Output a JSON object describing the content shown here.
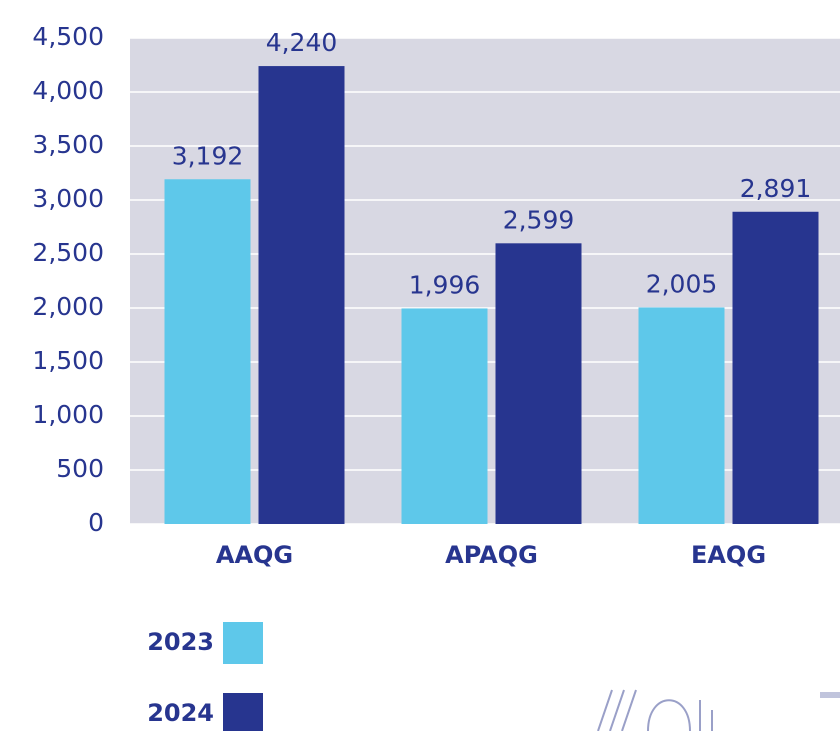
{
  "chart_data": {
    "type": "bar",
    "categories": [
      "AAQG",
      "APAQG",
      "EAQG"
    ],
    "series": [
      {
        "name": "2023",
        "color": "#5ec8ea",
        "values": [
          3192,
          1996,
          2005
        ],
        "value_labels": [
          "3,192",
          "1,996",
          "2,005"
        ]
      },
      {
        "name": "2024",
        "color": "#27358f",
        "values": [
          4240,
          2599,
          2891
        ],
        "value_labels": [
          "4,240",
          "2,599",
          "2,891"
        ]
      }
    ],
    "ylim": [
      0,
      4500
    ],
    "yticks": [
      0,
      500,
      {
        "value": 1000,
        "label": "1,000"
      },
      {
        "value": 1500,
        "label": "1,500"
      },
      {
        "value": 2000,
        "label": "2,000"
      },
      {
        "value": 2500,
        "label": "2,500"
      },
      {
        "value": 3000,
        "label": "3,000"
      },
      {
        "value": 3500,
        "label": "3,500"
      },
      {
        "value": 4000,
        "label": "4,000"
      },
      {
        "value": 4500,
        "label": "4,500"
      }
    ],
    "grid": true
  }
}
